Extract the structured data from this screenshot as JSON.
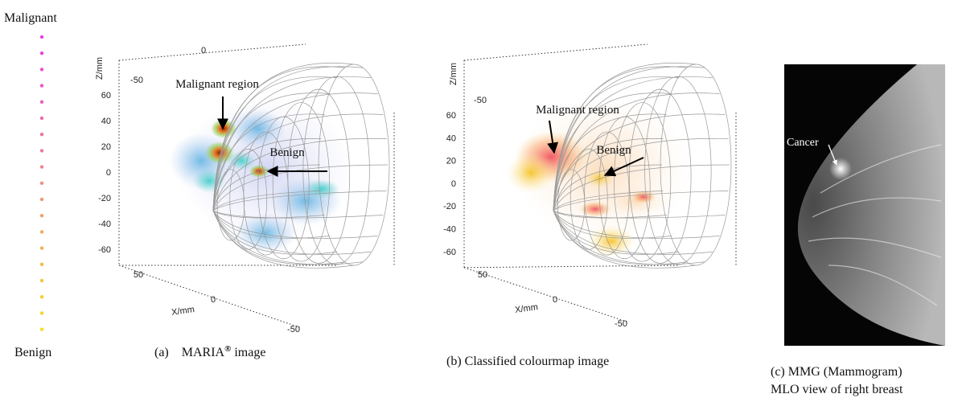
{
  "legend": {
    "top": "Malignant",
    "bottom": "Benign"
  },
  "panels": [
    {
      "caption": {
        "label": "(a)",
        "name": "MARIA",
        "mark": "®",
        "rest": "image"
      },
      "z_axis": {
        "label": "Z/mm",
        "ticks": [
          "60",
          "40",
          "20",
          "0",
          "-20",
          "-40",
          "-60"
        ]
      },
      "top_ticks": [
        "-50",
        "0"
      ],
      "x_axis": {
        "label": "X/mm",
        "ticks": [
          "50",
          "0",
          "-50"
        ]
      },
      "annotations": [
        "Malignant region",
        "Benign"
      ]
    },
    {
      "caption": "(b) Classified colourmap image",
      "z_axis": {
        "label": "Z/mm",
        "ticks": [
          "60",
          "40",
          "20",
          "0",
          "-20",
          "-40",
          "-60"
        ]
      },
      "top_ticks": [
        "-50"
      ],
      "x_axis": {
        "label": "X/mm",
        "ticks": [
          "50",
          "0",
          "-50"
        ]
      },
      "annotations": [
        "Malignant region",
        "Benign"
      ]
    },
    {
      "caption": [
        "(c) MMG (Mammogram)",
        "MLO view of right breast"
      ],
      "annotation": "Cancer"
    }
  ]
}
